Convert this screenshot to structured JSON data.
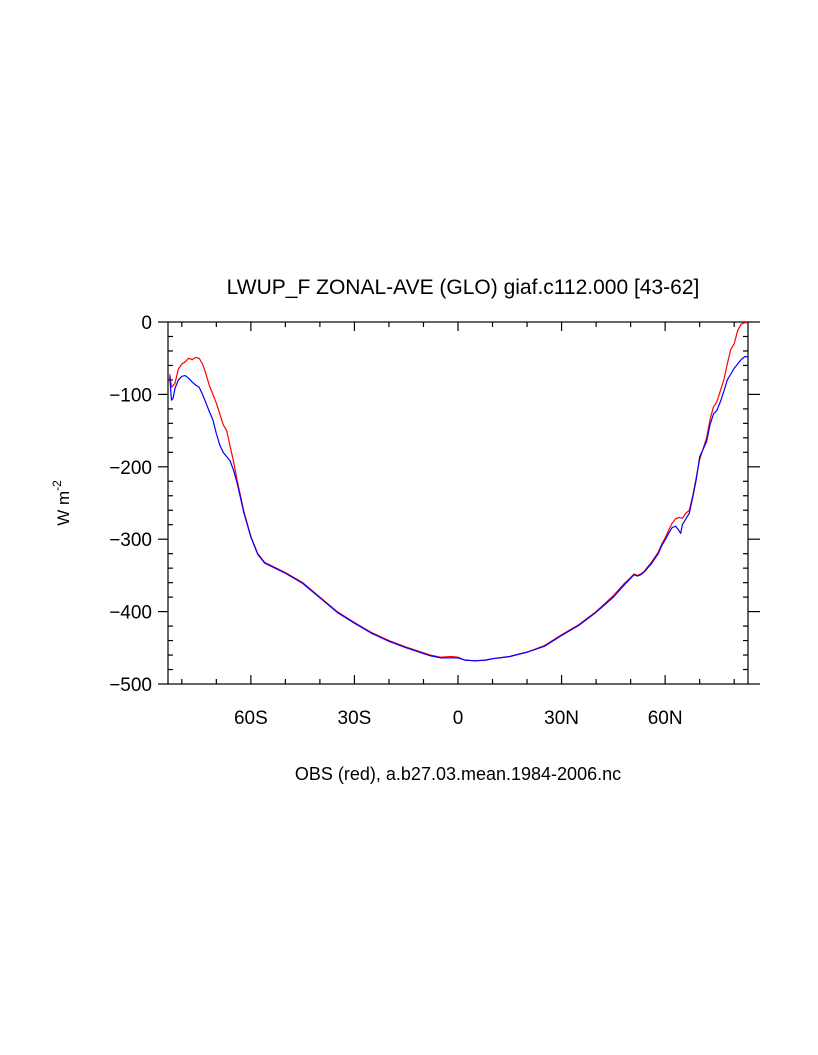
{
  "chart_data": {
    "type": "line",
    "title": "LWUP_F ZONAL-AVE (GLO) giaf.c112.000 [43-62]",
    "xlabel": "OBS (red), a.b27.03.mean.1984-2006.nc",
    "ylabel": "W m",
    "ylabel_exponent": "-2",
    "xlim": [
      -84,
      84
    ],
    "ylim": [
      -500,
      0
    ],
    "x_ticks": [
      {
        "value": -60,
        "label": "60S"
      },
      {
        "value": -30,
        "label": "30S"
      },
      {
        "value": 0,
        "label": "0"
      },
      {
        "value": 30,
        "label": "30N"
      },
      {
        "value": 60,
        "label": "60N"
      }
    ],
    "y_ticks": [
      {
        "value": 0,
        "label": "0"
      },
      {
        "value": -100,
        "label": "−100"
      },
      {
        "value": -200,
        "label": "−200"
      },
      {
        "value": -300,
        "label": "−300"
      },
      {
        "value": -400,
        "label": "−400"
      },
      {
        "value": -500,
        "label": "−500"
      }
    ],
    "grid": false,
    "series": [
      {
        "color": "#ff0000",
        "points": [
          [
            -83.5,
            -72
          ],
          [
            -83,
            -90
          ],
          [
            -82,
            -85
          ],
          [
            -81,
            -65
          ],
          [
            -80,
            -58
          ],
          [
            -79,
            -55
          ],
          [
            -78,
            -50
          ],
          [
            -77,
            -52
          ],
          [
            -76,
            -49
          ],
          [
            -75,
            -50
          ],
          [
            -74,
            -58
          ],
          [
            -73,
            -72
          ],
          [
            -72,
            -88
          ],
          [
            -71,
            -100
          ],
          [
            -70,
            -112
          ],
          [
            -69,
            -127
          ],
          [
            -68,
            -142
          ],
          [
            -67,
            -150
          ],
          [
            -66,
            -172
          ],
          [
            -65,
            -193
          ],
          [
            -64,
            -218
          ],
          [
            -62,
            -262
          ],
          [
            -60,
            -296
          ],
          [
            -58,
            -320
          ],
          [
            -56,
            -332
          ],
          [
            -50,
            -346
          ],
          [
            -45,
            -360
          ],
          [
            -40,
            -380
          ],
          [
            -35,
            -400
          ],
          [
            -30,
            -415
          ],
          [
            -25,
            -429
          ],
          [
            -20,
            -440
          ],
          [
            -15,
            -449
          ],
          [
            -10,
            -457
          ],
          [
            -8,
            -460
          ],
          [
            -5,
            -463
          ],
          [
            -2,
            -462
          ],
          [
            0,
            -463
          ],
          [
            2,
            -467
          ],
          [
            5,
            -468
          ],
          [
            8,
            -467
          ],
          [
            10,
            -465
          ],
          [
            15,
            -462
          ],
          [
            20,
            -456
          ],
          [
            25,
            -447
          ],
          [
            30,
            -432
          ],
          [
            35,
            -418
          ],
          [
            40,
            -400
          ],
          [
            45,
            -378
          ],
          [
            48,
            -362
          ],
          [
            50,
            -353
          ],
          [
            51,
            -348
          ],
          [
            52,
            -350
          ],
          [
            53,
            -348
          ],
          [
            54,
            -344
          ],
          [
            56,
            -332
          ],
          [
            58,
            -318
          ],
          [
            59,
            -307
          ],
          [
            60,
            -298
          ],
          [
            61,
            -288
          ],
          [
            62,
            -278
          ],
          [
            63,
            -272
          ],
          [
            64,
            -270
          ],
          [
            65,
            -271
          ],
          [
            66,
            -264
          ],
          [
            67,
            -260
          ],
          [
            68,
            -240
          ],
          [
            69,
            -215
          ],
          [
            70,
            -190
          ],
          [
            71,
            -175
          ],
          [
            72,
            -160
          ],
          [
            73,
            -135
          ],
          [
            74,
            -117
          ],
          [
            75,
            -110
          ],
          [
            76,
            -95
          ],
          [
            77,
            -80
          ],
          [
            78,
            -58
          ],
          [
            79,
            -38
          ],
          [
            80,
            -30
          ],
          [
            81,
            -12
          ],
          [
            82,
            -3
          ],
          [
            83,
            -1
          ],
          [
            88,
            -1
          ]
        ]
      },
      {
        "color": "#0000ff",
        "points": [
          [
            -83.5,
            -75
          ],
          [
            -83,
            -108
          ],
          [
            -82.5,
            -105
          ],
          [
            -82,
            -92
          ],
          [
            -81,
            -80
          ],
          [
            -80,
            -75
          ],
          [
            -79,
            -74
          ],
          [
            -78,
            -78
          ],
          [
            -77,
            -83
          ],
          [
            -76,
            -87
          ],
          [
            -75,
            -90
          ],
          [
            -74,
            -100
          ],
          [
            -73,
            -112
          ],
          [
            -72,
            -124
          ],
          [
            -71,
            -135
          ],
          [
            -70,
            -154
          ],
          [
            -69,
            -170
          ],
          [
            -68,
            -180
          ],
          [
            -67,
            -186
          ],
          [
            -66,
            -192
          ],
          [
            -65,
            -205
          ],
          [
            -64,
            -222
          ],
          [
            -62,
            -264
          ],
          [
            -60,
            -297
          ],
          [
            -58,
            -321
          ],
          [
            -56,
            -333
          ],
          [
            -50,
            -347
          ],
          [
            -45,
            -361
          ],
          [
            -40,
            -381
          ],
          [
            -35,
            -401
          ],
          [
            -30,
            -416
          ],
          [
            -25,
            -430
          ],
          [
            -20,
            -441
          ],
          [
            -15,
            -450
          ],
          [
            -10,
            -458
          ],
          [
            -8,
            -461
          ],
          [
            -5,
            -464
          ],
          [
            -2,
            -464
          ],
          [
            0,
            -464
          ],
          [
            2,
            -467
          ],
          [
            5,
            -468
          ],
          [
            8,
            -467
          ],
          [
            10,
            -465
          ],
          [
            15,
            -462
          ],
          [
            20,
            -456
          ],
          [
            25,
            -448
          ],
          [
            30,
            -433
          ],
          [
            35,
            -419
          ],
          [
            40,
            -401
          ],
          [
            45,
            -380
          ],
          [
            48,
            -364
          ],
          [
            50,
            -354
          ],
          [
            51,
            -349
          ],
          [
            52,
            -351
          ],
          [
            53,
            -349
          ],
          [
            54,
            -345
          ],
          [
            56,
            -334
          ],
          [
            58,
            -320
          ],
          [
            59,
            -309
          ],
          [
            60,
            -301
          ],
          [
            61,
            -292
          ],
          [
            62,
            -284
          ],
          [
            63,
            -282
          ],
          [
            64,
            -288
          ],
          [
            64.5,
            -292
          ],
          [
            65,
            -280
          ],
          [
            66,
            -272
          ],
          [
            67,
            -264
          ],
          [
            68,
            -242
          ],
          [
            69,
            -218
          ],
          [
            70,
            -186
          ],
          [
            71,
            -176
          ],
          [
            72,
            -165
          ],
          [
            73,
            -142
          ],
          [
            74,
            -127
          ],
          [
            75,
            -122
          ],
          [
            76,
            -110
          ],
          [
            77,
            -96
          ],
          [
            78,
            -80
          ],
          [
            79,
            -72
          ],
          [
            80,
            -64
          ],
          [
            81,
            -58
          ],
          [
            82,
            -52
          ],
          [
            83,
            -48
          ],
          [
            84,
            -48
          ],
          [
            86,
            -52
          ],
          [
            88,
            -57
          ],
          [
            89,
            -58
          ]
        ]
      }
    ]
  }
}
